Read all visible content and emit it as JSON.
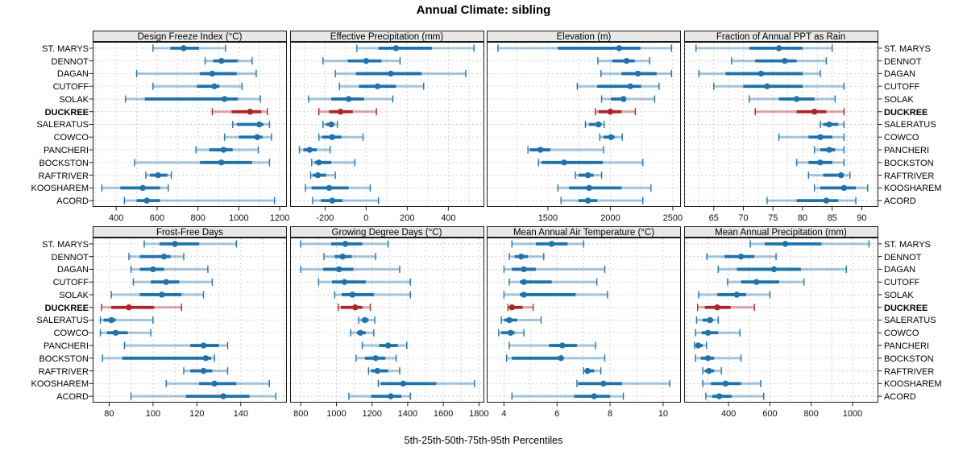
{
  "title": "Annual Climate: sibling",
  "caption": "5th-25th-50th-75th-95th Percentiles",
  "colors": {
    "series": "#1c73b1",
    "highlight": "#b22222",
    "grid": "#cccccc",
    "strip_bg": "#e7e7e7",
    "border": "#1b1b1b",
    "tick": "#222222"
  },
  "chart_data": {
    "type": "dotplot-intervals",
    "percentiles": [
      5,
      25,
      50,
      75,
      95
    ],
    "stations": [
      "ST. MARYS",
      "DENNOT",
      "DAGAN",
      "CUTOFF",
      "SOLAK",
      "DUCKREE",
      "SALERATUS",
      "COWCO",
      "PANCHERI",
      "BOCKSTON",
      "RAFTRIVER",
      "KOOSHAREM",
      "ACORD"
    ],
    "highlight_station": "DUCKREE",
    "panels": [
      {
        "title": "Design Freeze Index (°C)",
        "row": 0,
        "col": 0,
        "xlim": [
          285,
          1235
        ],
        "ticks": [
          400,
          600,
          800,
          1000,
          1200
        ],
        "grid_step": 100,
        "values": {
          "ST. MARYS": [
            580,
            665,
            730,
            805,
            935
          ],
          "DENNOT": [
            835,
            875,
            915,
            995,
            1065
          ],
          "DAGAN": [
            500,
            810,
            870,
            990,
            1085
          ],
          "CUTOFF": [
            580,
            795,
            880,
            905,
            1015
          ],
          "SOLAK": [
            445,
            540,
            930,
            995,
            1105
          ],
          "DUCKREE": [
            870,
            965,
            1055,
            1110,
            1140
          ],
          "SALERATUS": [
            970,
            990,
            1100,
            1120,
            1150
          ],
          "COWCO": [
            930,
            1000,
            1090,
            1115,
            1160
          ],
          "PANCHERI": [
            790,
            855,
            925,
            970,
            1095
          ],
          "BOCKSTON": [
            490,
            810,
            915,
            1065,
            1150
          ],
          "RAFTRIVER": [
            545,
            565,
            605,
            650,
            670
          ],
          "KOOSHAREM": [
            330,
            420,
            530,
            615,
            655
          ],
          "ACORD": [
            440,
            500,
            550,
            615,
            1175
          ]
        }
      },
      {
        "title": "Effective Precipitation (mm)",
        "row": 0,
        "col": 1,
        "xlim": [
          -370,
          575
        ],
        "ticks": [
          -200,
          0,
          200,
          400
        ],
        "grid_step": 100,
        "values": {
          "ST. MARYS": [
            -45,
            60,
            145,
            320,
            525
          ],
          "DENNOT": [
            -210,
            -90,
            0,
            75,
            165
          ],
          "DAGAN": [
            -150,
            -50,
            120,
            270,
            485
          ],
          "CUTOFF": [
            -130,
            -35,
            55,
            145,
            280
          ],
          "SOLAK": [
            -280,
            -170,
            -85,
            -10,
            130
          ],
          "DUCKREE": [
            -230,
            -180,
            -125,
            -65,
            50
          ],
          "SALERATUS": [
            -210,
            -195,
            -170,
            -155,
            -140
          ],
          "COWCO": [
            -230,
            -215,
            -165,
            -120,
            -15
          ],
          "PANCHERI": [
            -325,
            -305,
            -275,
            -240,
            -175
          ],
          "BOCKSTON": [
            -265,
            -250,
            -230,
            -170,
            -55
          ],
          "RAFTRIVER": [
            -270,
            -260,
            -235,
            -195,
            -150
          ],
          "KOOSHAREM": [
            -295,
            -265,
            -180,
            -85,
            20
          ],
          "ACORD": [
            -260,
            -220,
            -165,
            -115,
            60
          ]
        }
      },
      {
        "title": "Elevation (m)",
        "row": 0,
        "col": 2,
        "xlim": [
          1010,
          2565
        ],
        "ticks": [
          1500,
          2000,
          2500
        ],
        "grid_step": 250,
        "values": {
          "ST. MARYS": [
            1100,
            1580,
            2070,
            2240,
            2490
          ],
          "DENNOT": [
            1900,
            2015,
            2130,
            2195,
            2315
          ],
          "DAGAN": [
            1925,
            2090,
            2220,
            2370,
            2490
          ],
          "CUTOFF": [
            1735,
            1895,
            2160,
            2245,
            2390
          ],
          "SOLAK": [
            1930,
            2005,
            2105,
            2125,
            2355
          ],
          "DUCKREE": [
            1880,
            1905,
            2000,
            2090,
            2200
          ],
          "SALERATUS": [
            1800,
            1830,
            1905,
            1930,
            1950
          ],
          "COWCO": [
            1915,
            1945,
            2005,
            2035,
            2095
          ],
          "PANCHERI": [
            1340,
            1355,
            1440,
            1520,
            1945
          ],
          "BOCKSTON": [
            1425,
            1450,
            1630,
            1940,
            2260
          ],
          "RAFTRIVER": [
            1720,
            1745,
            1820,
            1865,
            1930
          ],
          "KOOSHAREM": [
            1580,
            1670,
            1830,
            2090,
            2325
          ],
          "ACORD": [
            1605,
            1745,
            1820,
            1895,
            2260
          ]
        }
      },
      {
        "title": "Fraction of Annual PPT as Rain",
        "row": 0,
        "col": 3,
        "xlim": [
          60,
          92.8
        ],
        "ticks": [
          65,
          70,
          75,
          80,
          85,
          90
        ],
        "grid_step": 2.5,
        "values": {
          "ST. MARYS": [
            62,
            71,
            76,
            80,
            85
          ],
          "DENNOT": [
            68,
            72,
            77,
            79,
            84
          ],
          "DAGAN": [
            62.5,
            67,
            73,
            80,
            83
          ],
          "CUTOFF": [
            65,
            70,
            74,
            80,
            87
          ],
          "SOLAK": [
            71,
            76,
            79,
            82,
            85.5
          ],
          "DUCKREE": [
            72,
            79,
            82,
            84,
            87
          ],
          "SALERATUS": [
            83,
            83.5,
            84.5,
            86,
            87
          ],
          "COWCO": [
            76,
            81,
            83,
            85,
            87
          ],
          "PANCHERI": [
            82,
            83,
            84.5,
            85.5,
            87
          ],
          "BOCKSTON": [
            79,
            81,
            83,
            85,
            87
          ],
          "RAFTRIVER": [
            81,
            83.5,
            86.5,
            87,
            88
          ],
          "KOOSHAREM": [
            82,
            83,
            87,
            89,
            91
          ],
          "ACORD": [
            74,
            79,
            84,
            86,
            89
          ]
        }
      },
      {
        "title": "Frost-Free Days",
        "row": 1,
        "col": 0,
        "xlim": [
          72.5,
          161
        ],
        "ticks": [
          80,
          100,
          120,
          140
        ],
        "grid_step": 10,
        "values": {
          "ST. MARYS": [
            96,
            103,
            110,
            121,
            138
          ],
          "DENNOT": [
            89,
            94,
            105,
            108,
            114
          ],
          "DAGAN": [
            90,
            94,
            100,
            105,
            125
          ],
          "CUTOFF": [
            91,
            99,
            106,
            112,
            127
          ],
          "SOLAK": [
            81,
            94,
            104,
            113,
            123
          ],
          "DUCKREE": [
            76.5,
            81,
            89,
            100.5,
            113
          ],
          "SALERATUS": [
            76,
            77.5,
            81,
            83,
            100
          ],
          "COWCO": [
            76,
            79,
            83,
            88.5,
            99
          ],
          "PANCHERI": [
            87,
            117,
            123,
            130,
            134
          ],
          "BOCKSTON": [
            77,
            86,
            124,
            126.5,
            128
          ],
          "RAFTRIVER": [
            114,
            117,
            123,
            127,
            134
          ],
          "KOOSHAREM": [
            106,
            121,
            128,
            138,
            153
          ],
          "ACORD": [
            90,
            115,
            132,
            144,
            156
          ]
        }
      },
      {
        "title": "Growing Degree Days (°C)",
        "row": 1,
        "col": 1,
        "xlim": [
          740,
          1830
        ],
        "ticks": [
          800,
          1000,
          1200,
          1400,
          1600,
          1800
        ],
        "grid_step": 100,
        "values": {
          "ST. MARYS": [
            800,
            970,
            1050,
            1145,
            1290
          ],
          "DENNOT": [
            930,
            990,
            1035,
            1085,
            1220
          ],
          "DAGAN": [
            800,
            925,
            1015,
            1095,
            1355
          ],
          "CUTOFF": [
            900,
            975,
            1045,
            1165,
            1415
          ],
          "SOLAK": [
            990,
            1030,
            1090,
            1210,
            1415
          ],
          "DUCKREE": [
            1010,
            1025,
            1105,
            1145,
            1190
          ],
          "SALERATUS": [
            1125,
            1140,
            1160,
            1180,
            1215
          ],
          "COWCO": [
            1080,
            1115,
            1135,
            1165,
            1210
          ],
          "PANCHERI": [
            1145,
            1240,
            1290,
            1345,
            1395
          ],
          "BOCKSTON": [
            1110,
            1160,
            1220,
            1275,
            1335
          ],
          "RAFTRIVER": [
            1180,
            1195,
            1230,
            1290,
            1355
          ],
          "KOOSHAREM": [
            1235,
            1250,
            1375,
            1560,
            1775
          ],
          "ACORD": [
            1070,
            1195,
            1305,
            1365,
            1415
          ]
        }
      },
      {
        "title": "Mean Annual Air Temperature (°C)",
        "row": 1,
        "col": 2,
        "xlim": [
          3.35,
          10.67
        ],
        "ticks": [
          4,
          6,
          8,
          10
        ],
        "grid_step": 1,
        "values": {
          "ST. MARYS": [
            4.3,
            5.2,
            5.8,
            6.4,
            7.0
          ],
          "DENNOT": [
            4.2,
            4.4,
            4.65,
            4.9,
            5.5
          ],
          "DAGAN": [
            4.0,
            4.3,
            4.75,
            5.2,
            7.8
          ],
          "CUTOFF": [
            4.2,
            4.6,
            4.75,
            5.8,
            7.5
          ],
          "SOLAK": [
            4.0,
            4.6,
            4.75,
            6.7,
            7.9
          ],
          "DUCKREE": [
            4.15,
            4.2,
            4.3,
            4.7,
            5.1
          ],
          "SALERATUS": [
            3.9,
            4.0,
            4.2,
            4.5,
            5.4
          ],
          "COWCO": [
            3.8,
            3.9,
            4.25,
            4.4,
            4.75
          ],
          "PANCHERI": [
            4.2,
            5.7,
            6.2,
            6.75,
            7.45
          ],
          "BOCKSTON": [
            4.1,
            4.3,
            6.15,
            6.25,
            7.8
          ],
          "RAFTRIVER": [
            7.0,
            7.05,
            7.15,
            7.4,
            7.65
          ],
          "KOOSHAREM": [
            6.75,
            6.8,
            7.75,
            8.45,
            10.25
          ],
          "ACORD": [
            4.3,
            6.65,
            7.4,
            8.0,
            8.5
          ]
        }
      },
      {
        "title": "Mean Annual Precipitation (mm)",
        "row": 1,
        "col": 3,
        "xlim": [
          185,
          1125
        ],
        "ticks": [
          400,
          600,
          800,
          1000
        ],
        "grid_step": 100,
        "values": {
          "ST. MARYS": [
            505,
            575,
            675,
            850,
            1080
          ],
          "DENNOT": [
            295,
            380,
            460,
            525,
            630
          ],
          "DAGAN": [
            350,
            440,
            620,
            750,
            970
          ],
          "CUTOFF": [
            395,
            460,
            535,
            645,
            765
          ],
          "SOLAK": [
            255,
            345,
            440,
            485,
            600
          ],
          "DUCKREE": [
            250,
            285,
            345,
            410,
            525
          ],
          "SALERATUS": [
            245,
            275,
            310,
            325,
            350
          ],
          "COWCO": [
            240,
            270,
            300,
            350,
            455
          ],
          "PANCHERI": [
            235,
            240,
            253,
            275,
            293
          ],
          "BOCKSTON": [
            240,
            265,
            300,
            330,
            460
          ],
          "RAFTRIVER": [
            275,
            285,
            305,
            330,
            365
          ],
          "KOOSHAREM": [
            275,
            315,
            385,
            460,
            555
          ],
          "ACORD": [
            290,
            320,
            355,
            415,
            570
          ]
        }
      }
    ]
  }
}
